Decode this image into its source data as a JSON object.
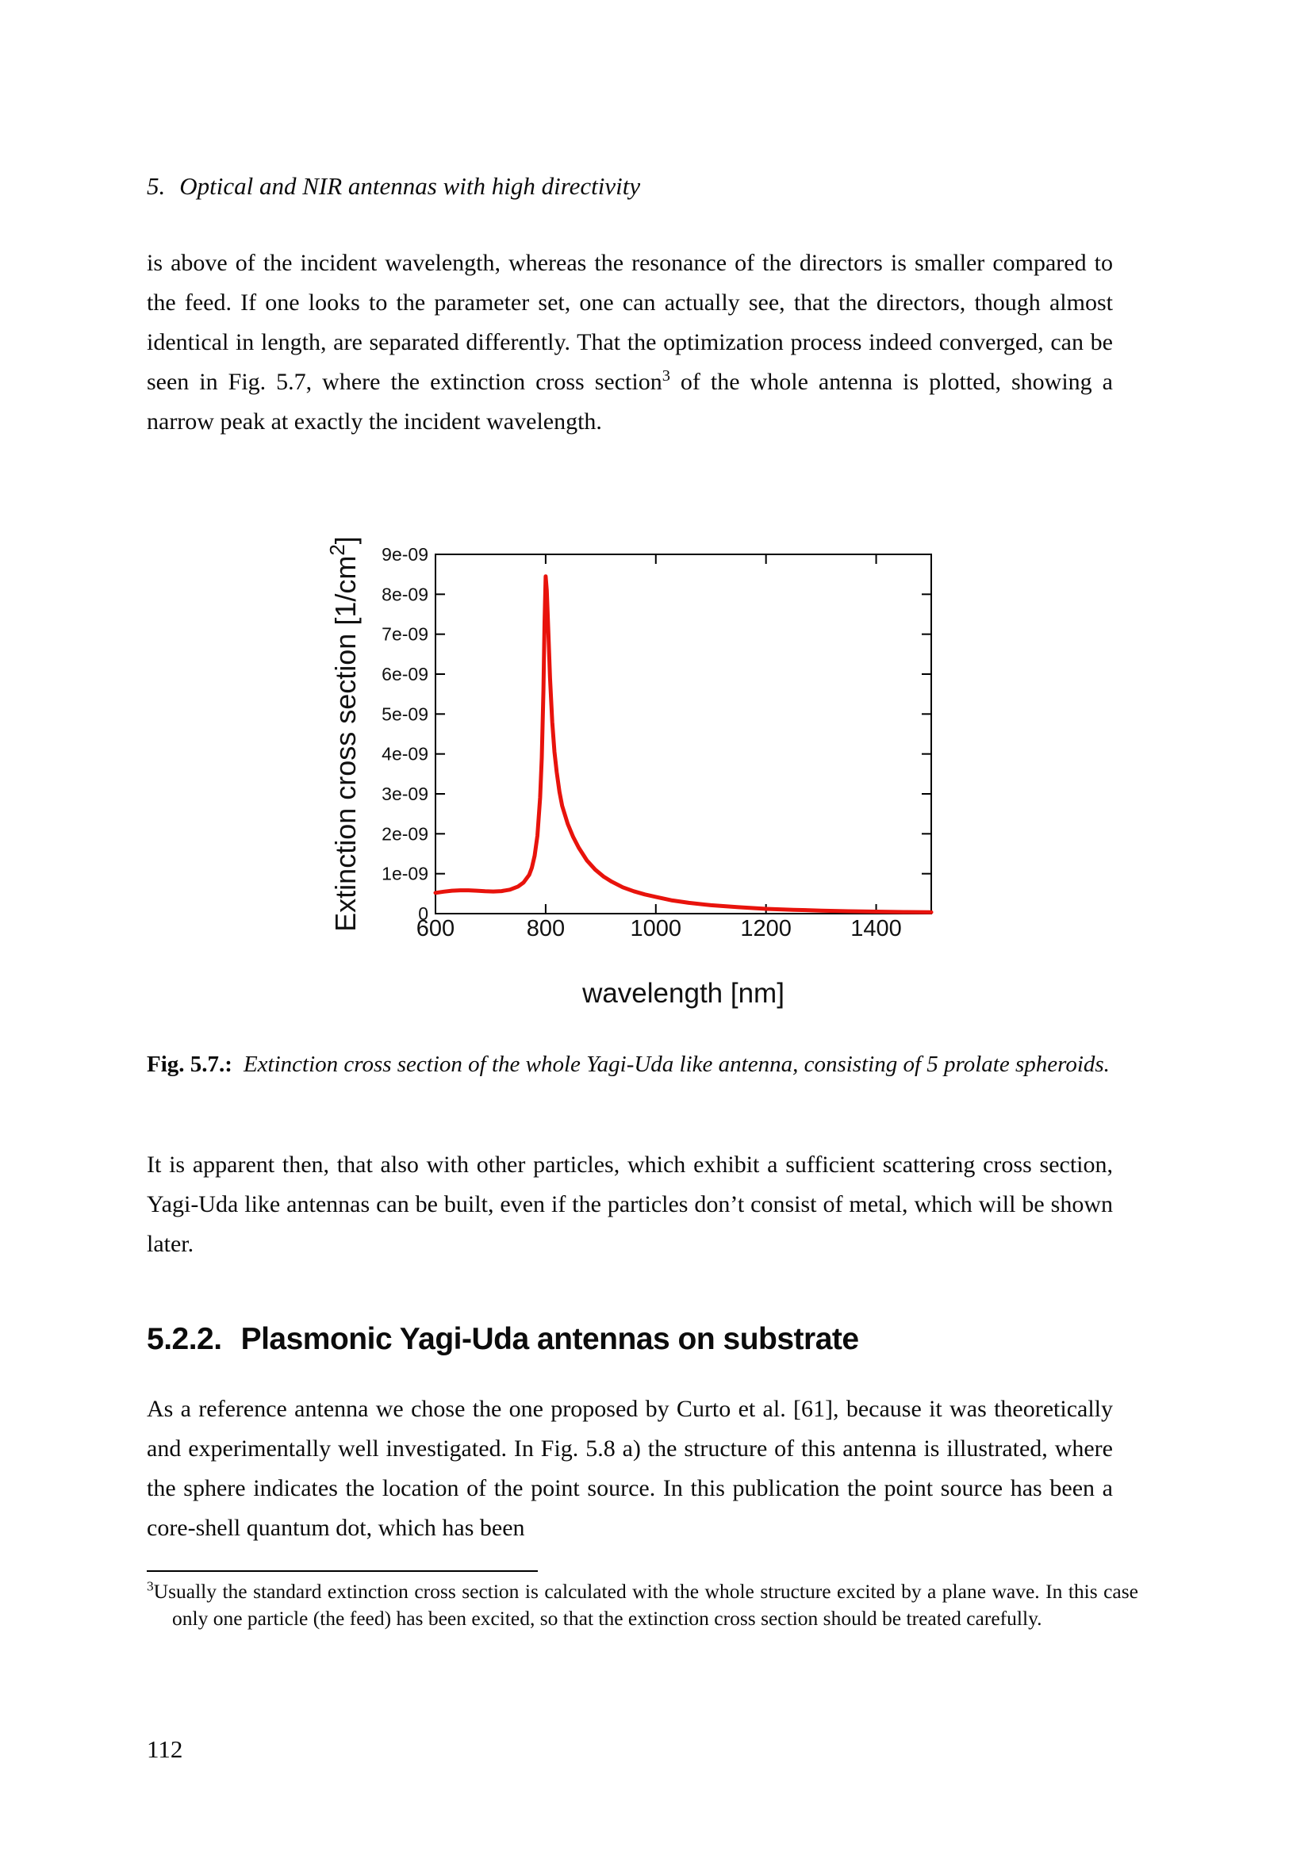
{
  "running_header": {
    "number": "5.",
    "title": "Optical and NIR antennas with high directivity"
  },
  "paragraphs": {
    "p1_before_sup": "is above of the incident wavelength, whereas the resonance of the directors is smaller compared to the feed. If one looks to the parameter set, one can actually see, that the directors, though almost identical in length, are separated differently. That the optimization process indeed converged, can be seen in Fig. 5.7, where the extinction cross section",
    "p1_sup": "3",
    "p1_after_sup": " of the whole antenna is plotted, showing a narrow peak at exactly the incident wavelength.",
    "p2": "It is apparent then, that also with other particles, which exhibit a sufficient scattering cross section, Yagi-Uda like antennas can be built, even if the particles don’t consist of metal, which will be shown later.",
    "p3": "As a reference antenna we chose the one proposed by Curto et al. [61], because it was theoretically and experimentally well investigated. In Fig. 5.8 a) the structure of this antenna is illustrated, where the sphere indicates the location of the point source. In this publication the point source has been a core-shell quantum dot, which has been"
  },
  "figure_caption": {
    "label": "Fig. 5.7.:",
    "text": "Extinction cross section of the whole Yagi-Uda like antenna, consisting of 5 prolate spheroids."
  },
  "section_heading": {
    "number": "5.2.2.",
    "title": "Plasmonic Yagi-Uda antennas on substrate"
  },
  "footnote": {
    "marker": "3",
    "text": "Usually the standard extinction cross section is calculated with the whole structure excited by a plane wave. In this case only one particle (the feed) has been excited, so that the extinction cross section should be treated carefully."
  },
  "page_number": "112",
  "chart_data": {
    "type": "line",
    "title": "",
    "xlabel": "wavelength [nm]",
    "ylabel": "Extinction cross section [1/cm²]",
    "xlim": [
      600,
      1500
    ],
    "ylim": [
      0,
      9e-09
    ],
    "grid": false,
    "legend": "none",
    "tick_style": "inward-mirrored",
    "frame_color": "#000000",
    "x_ticks": [
      {
        "v": 600,
        "label": "600"
      },
      {
        "v": 800,
        "label": "800"
      },
      {
        "v": 1000,
        "label": "1000"
      },
      {
        "v": 1200,
        "label": "1200"
      },
      {
        "v": 1400,
        "label": "1400"
      }
    ],
    "y_ticks": [
      {
        "v": 0,
        "label": "0"
      },
      {
        "v": 1e-09,
        "label": "1e-09"
      },
      {
        "v": 2e-09,
        "label": "2e-09"
      },
      {
        "v": 3e-09,
        "label": "3e-09"
      },
      {
        "v": 4e-09,
        "label": "4e-09"
      },
      {
        "v": 5e-09,
        "label": "5e-09"
      },
      {
        "v": 6e-09,
        "label": "6e-09"
      },
      {
        "v": 7e-09,
        "label": "7e-09"
      },
      {
        "v": 8e-09,
        "label": "8e-09"
      },
      {
        "v": 9e-09,
        "label": "9e-09"
      }
    ],
    "series": [
      {
        "name": "extinction cross section",
        "color": "#e8130c",
        "line_width": 5,
        "x": [
          600,
          615,
          630,
          645,
          660,
          675,
          690,
          705,
          720,
          735,
          750,
          760,
          770,
          775,
          780,
          785,
          790,
          793,
          796,
          798,
          800,
          802,
          805,
          808,
          812,
          816,
          820,
          825,
          830,
          840,
          850,
          860,
          875,
          890,
          905,
          920,
          940,
          960,
          980,
          1000,
          1030,
          1060,
          1100,
          1150,
          1200,
          1250,
          1300,
          1350,
          1400,
          1450,
          1500
        ],
        "y": [
          5.2e-10,
          5.5e-10,
          5.75e-10,
          5.85e-10,
          5.85e-10,
          5.75e-10,
          5.6e-10,
          5.55e-10,
          5.65e-10,
          6e-10,
          6.8e-10,
          7.8e-10,
          9.7e-10,
          1.15e-09,
          1.45e-09,
          1.95e-09,
          2.9e-09,
          3.9e-09,
          5.6e-09,
          7.3e-09,
          8.45e-09,
          8.1e-09,
          7e-09,
          5.9e-09,
          4.8e-09,
          4.05e-09,
          3.55e-09,
          3.05e-09,
          2.7e-09,
          2.25e-09,
          1.92e-09,
          1.65e-09,
          1.33e-09,
          1.1e-09,
          9.3e-10,
          8e-10,
          6.6e-10,
          5.6e-10,
          4.8e-10,
          4.2e-10,
          3.3e-10,
          2.7e-10,
          2.1e-10,
          1.6e-10,
          1.2e-10,
          9.5e-11,
          7.5e-11,
          6e-11,
          5e-11,
          4e-11,
          3.5e-11
        ]
      }
    ]
  }
}
